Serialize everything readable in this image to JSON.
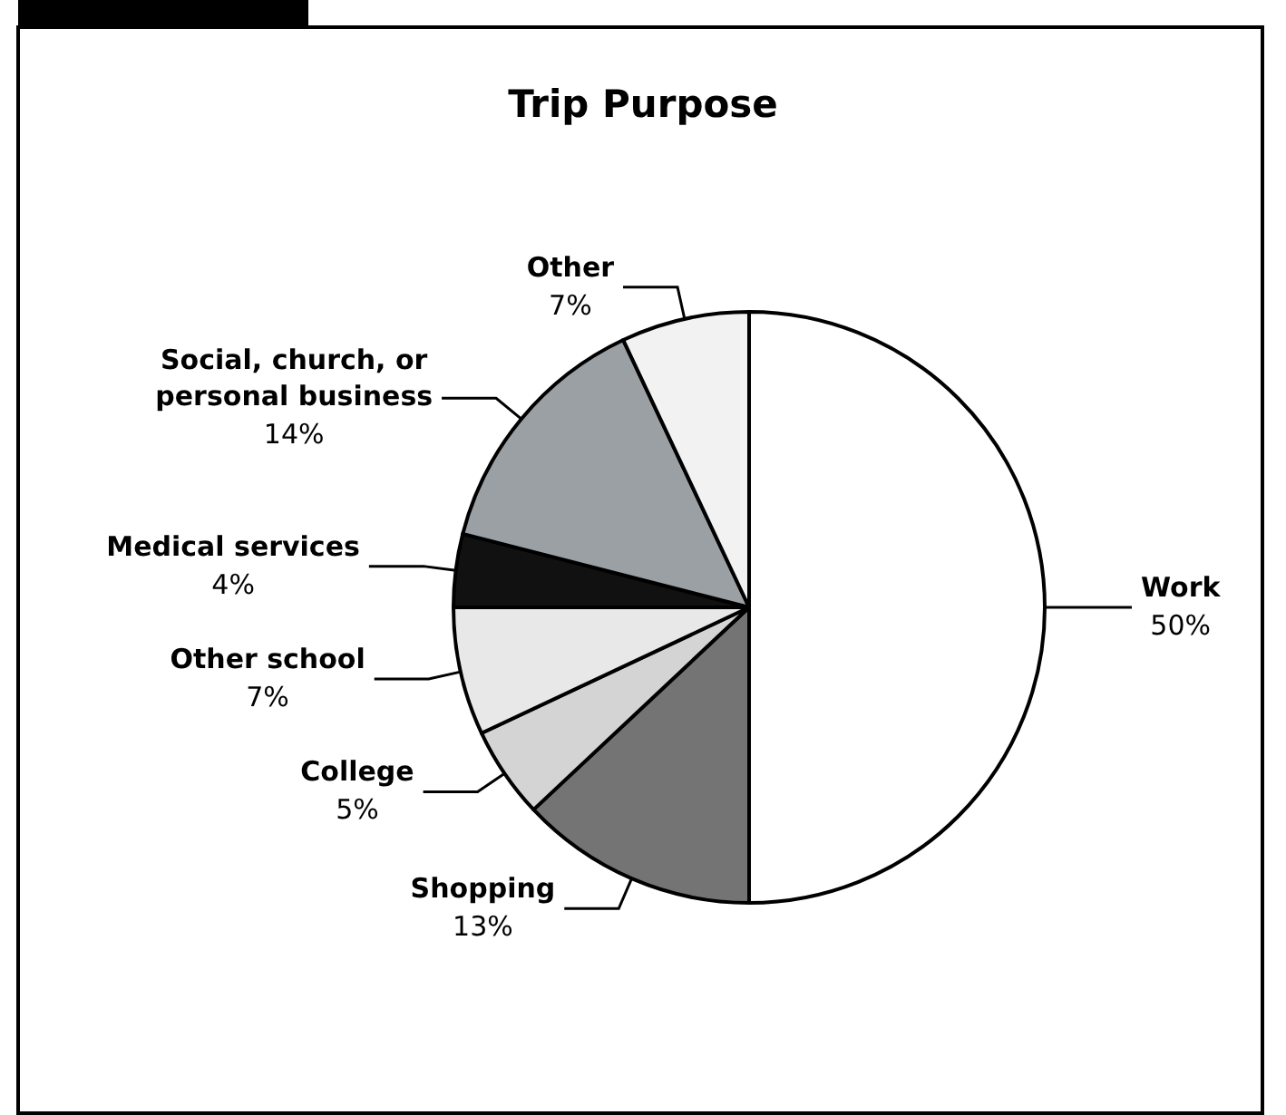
{
  "chart_data": {
    "type": "pie",
    "title": "Trip Purpose",
    "categories": [
      "Work",
      "Shopping",
      "College",
      "Other school",
      "Medical services",
      "Social, church, or\npersonal business",
      "Other"
    ],
    "values": [
      50,
      13,
      5,
      7,
      4,
      14,
      7
    ],
    "value_labels": [
      "50%",
      "13%",
      "5%",
      "7%",
      "4%",
      "14%",
      "7%"
    ],
    "colors": [
      "#ffffff",
      "#747474",
      "#d4d4d4",
      "#e8e8e8",
      "#111111",
      "#9ba0a4",
      "#f2f2f2"
    ]
  }
}
